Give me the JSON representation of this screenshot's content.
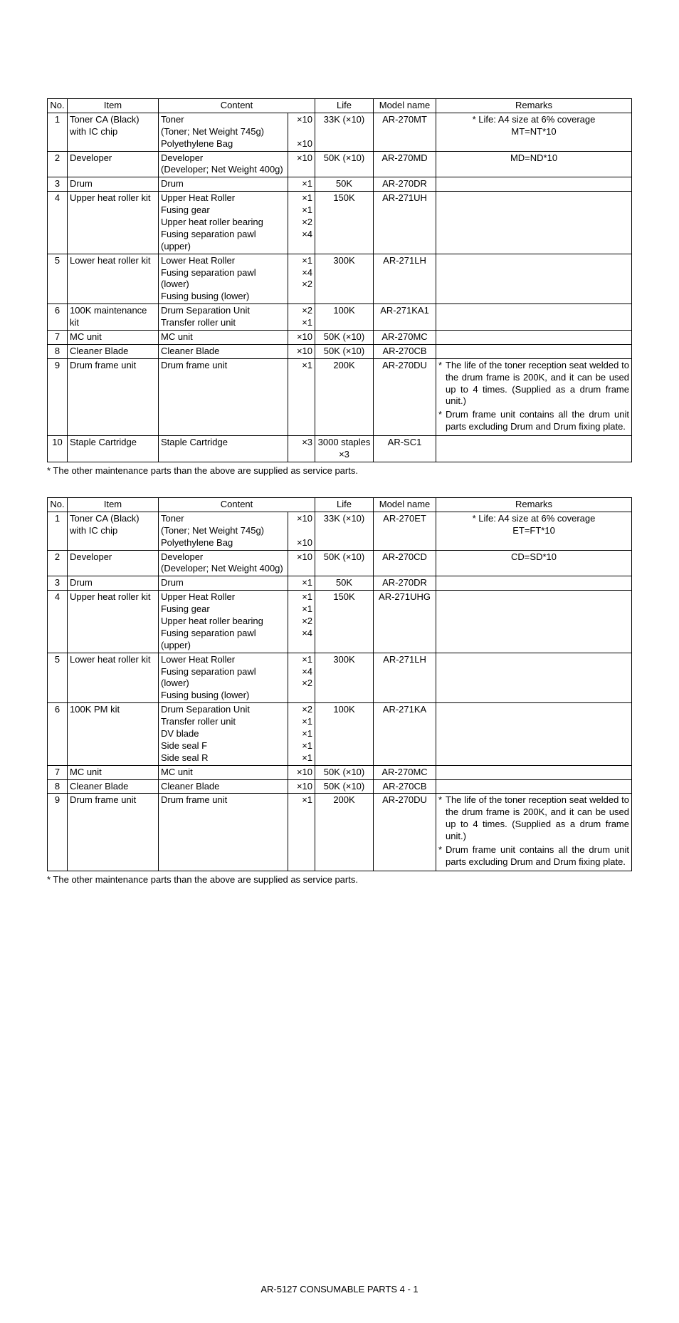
{
  "headers": {
    "no": "No.",
    "item": "Item",
    "content": "Content",
    "life": "Life",
    "model": "Model name",
    "remarks": "Remarks"
  },
  "footnote": "*  The other maintenance parts than the above are supplied as service parts.",
  "page_footer": "AR-5127 CONSUMABLE PARTS 4 - 1",
  "table1": [
    {
      "no": "1",
      "item": "Toner CA (Black) with IC chip",
      "content": [
        {
          "n": "Toner",
          "q": "×10"
        },
        {
          "n": "(Toner; Net Weight 745g)",
          "q": ""
        },
        {
          "n": "Polyethylene Bag",
          "q": "×10"
        }
      ],
      "life": "33K  (×10)",
      "model": "AR-270MT",
      "remarks_center": "* Life: A4 size at 6% coverage\nMT=NT*10"
    },
    {
      "no": "2",
      "item": "Developer",
      "content": [
        {
          "n": "Developer",
          "q": "×10"
        },
        {
          "n": "(Developer; Net Weight 400g)",
          "q": ""
        }
      ],
      "life": "50K  (×10)",
      "model": "AR-270MD",
      "remarks_center": "MD=ND*10"
    },
    {
      "no": "3",
      "item": "Drum",
      "content": [
        {
          "n": "Drum",
          "q": "×1"
        }
      ],
      "life": "50K",
      "model": "AR-270DR",
      "remarks_center": ""
    },
    {
      "no": "4",
      "item": "Upper heat roller kit",
      "content": [
        {
          "n": "Upper Heat Roller",
          "q": "×1"
        },
        {
          "n": "Fusing gear",
          "q": "×1"
        },
        {
          "n": "Upper heat roller bearing",
          "q": "×2"
        },
        {
          "n": "Fusing separation pawl (upper)",
          "q": "×4"
        }
      ],
      "life": "150K",
      "model": "AR-271UH",
      "remarks_center": ""
    },
    {
      "no": "5",
      "item": "Lower heat roller kit",
      "content": [
        {
          "n": "Lower Heat Roller",
          "q": "×1"
        },
        {
          "n": "Fusing separation pawl (lower)",
          "q": "×4"
        },
        {
          "n": "Fusing busing (lower)",
          "q": "×2"
        }
      ],
      "life": "300K",
      "model": "AR-271LH",
      "remarks_center": ""
    },
    {
      "no": "6",
      "item": "100K maintenance kit",
      "content": [
        {
          "n": "Drum Separation Unit",
          "q": "×2"
        },
        {
          "n": "Transfer roller unit",
          "q": "×1"
        }
      ],
      "life": "100K",
      "model": "AR-271KA1",
      "remarks_center": ""
    },
    {
      "no": "7",
      "item": "MC unit",
      "content": [
        {
          "n": "MC unit",
          "q": "×10"
        }
      ],
      "life": "50K  (×10)",
      "model": "AR-270MC",
      "remarks_center": ""
    },
    {
      "no": "8",
      "item": "Cleaner Blade",
      "content": [
        {
          "n": "Cleaner Blade",
          "q": "×10"
        }
      ],
      "life": "50K  (×10)",
      "model": "AR-270CB",
      "remarks_center": ""
    },
    {
      "no": "9",
      "item": "Drum frame unit",
      "content": [
        {
          "n": "Drum frame unit",
          "q": "×1"
        }
      ],
      "life": "200K",
      "model": "AR-270DU",
      "remarks_bullets": [
        "The life of the toner reception seat welded to the drum frame is 200K, and it can be used up to 4 times. (Supplied as a drum frame unit.)",
        "Drum frame unit contains all the drum unit parts excluding Drum and Drum fixing plate."
      ]
    },
    {
      "no": "10",
      "item": "Staple Cartridge",
      "content": [
        {
          "n": "Staple Cartridge",
          "q": "×3"
        }
      ],
      "life": "3000 staples ×3",
      "model": "AR-SC1",
      "remarks_center": ""
    }
  ],
  "table2": [
    {
      "no": "1",
      "item": "Toner CA (Black) with IC chip",
      "content": [
        {
          "n": "Toner",
          "q": "×10"
        },
        {
          "n": "(Toner; Net Weight 745g)",
          "q": ""
        },
        {
          "n": "Polyethylene Bag",
          "q": "×10"
        }
      ],
      "life": "33K  (×10)",
      "model": "AR-270ET",
      "remarks_center": "* Life: A4 size at 6% coverage\nET=FT*10"
    },
    {
      "no": "2",
      "item": "Developer",
      "content": [
        {
          "n": "Developer",
          "q": "×10"
        },
        {
          "n": "(Developer; Net Weight 400g)",
          "q": ""
        }
      ],
      "life": "50K  (×10)",
      "model": "AR-270CD",
      "remarks_center": "CD=SD*10"
    },
    {
      "no": "3",
      "item": "Drum",
      "content": [
        {
          "n": "Drum",
          "q": "×1"
        }
      ],
      "life": "50K",
      "model": "AR-270DR",
      "remarks_center": ""
    },
    {
      "no": "4",
      "item": "Upper heat roller kit",
      "content": [
        {
          "n": "Upper Heat Roller",
          "q": "×1"
        },
        {
          "n": "Fusing gear",
          "q": "×1"
        },
        {
          "n": "Upper heat roller bearing",
          "q": "×2"
        },
        {
          "n": "Fusing separation pawl (upper)",
          "q": "×4"
        }
      ],
      "life": "150K",
      "model": "AR-271UHG",
      "remarks_center": ""
    },
    {
      "no": "5",
      "item": "Lower heat roller kit",
      "content": [
        {
          "n": "Lower Heat Roller",
          "q": "×1"
        },
        {
          "n": "Fusing separation pawl (lower)",
          "q": "×4"
        },
        {
          "n": "Fusing busing (lower)",
          "q": "×2"
        }
      ],
      "life": "300K",
      "model": "AR-271LH",
      "remarks_center": ""
    },
    {
      "no": "6",
      "item": "100K PM kit",
      "content": [
        {
          "n": "Drum Separation Unit",
          "q": "×2"
        },
        {
          "n": "Transfer roller unit",
          "q": "×1"
        },
        {
          "n": "DV blade",
          "q": "×1"
        },
        {
          "n": "Side seal F",
          "q": "×1"
        },
        {
          "n": "Side seal R",
          "q": "×1"
        }
      ],
      "life": "100K",
      "model": "AR-271KA",
      "remarks_center": ""
    },
    {
      "no": "7",
      "item": "MC unit",
      "content": [
        {
          "n": "MC unit",
          "q": "×10"
        }
      ],
      "life": "50K  (×10)",
      "model": "AR-270MC",
      "remarks_center": ""
    },
    {
      "no": "8",
      "item": "Cleaner Blade",
      "content": [
        {
          "n": "Cleaner Blade",
          "q": "×10"
        }
      ],
      "life": "50K  (×10)",
      "model": "AR-270CB",
      "remarks_center": ""
    },
    {
      "no": "9",
      "item": "Drum frame unit",
      "content": [
        {
          "n": "Drum frame unit",
          "q": "×1"
        }
      ],
      "life": "200K",
      "model": "AR-270DU",
      "remarks_bullets": [
        "The life of the toner reception seat welded to the drum frame is 200K, and it can be used up to 4 times. (Supplied as a drum frame unit.)",
        "Drum frame unit contains all the drum unit parts excluding Drum and Drum fixing plate."
      ]
    }
  ]
}
